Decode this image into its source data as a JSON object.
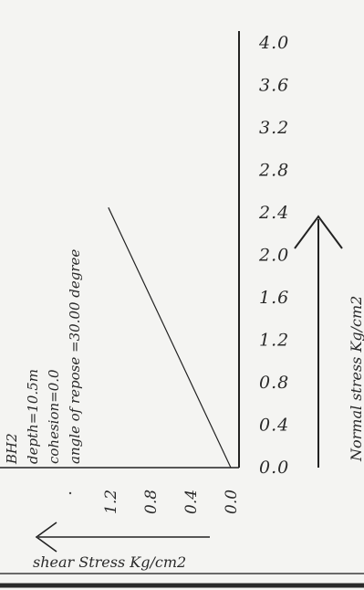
{
  "chart_data": {
    "type": "line",
    "annotations": {
      "borehole": "BH2",
      "depth": "depth=10.5m",
      "cohesion": "cohesion=0.0",
      "angle": "angle of repose =30.00 degree"
    },
    "y_axis": {
      "label": "Normal stress Kg/cm2",
      "ticks": [
        "4.0",
        "3.6",
        "3.2",
        "2.8",
        "2.4",
        "2.0",
        "1.6",
        "1.2",
        "0.8",
        "0.4",
        "0.0"
      ],
      "range": [
        0.0,
        4.0
      ]
    },
    "x_axis": {
      "label": "shear Stress Kg/cm2",
      "ticks": [
        "1.2",
        "0.8",
        "0.4",
        "0.0"
      ],
      "range": [
        0.0,
        1.2
      ]
    },
    "series": [
      {
        "points": [
          {
            "shear": 0.0,
            "normal": 0.0
          },
          {
            "shear": 1.22,
            "normal": 2.45
          }
        ],
        "color": "#222222"
      }
    ]
  }
}
